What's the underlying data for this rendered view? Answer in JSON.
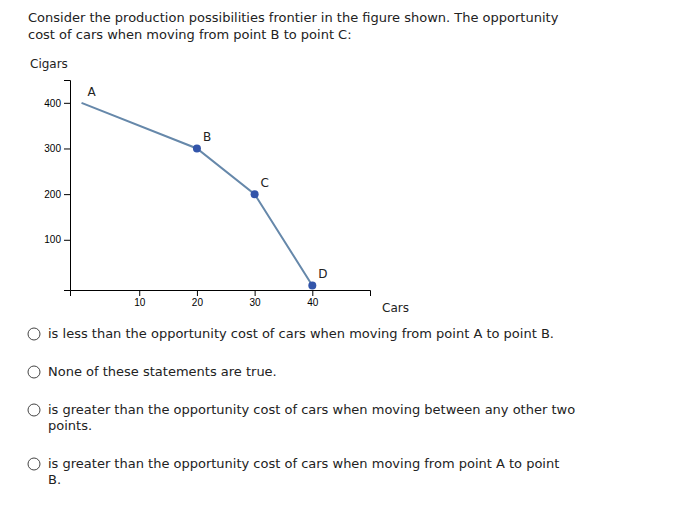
{
  "chart_data": {
    "type": "line",
    "title": [
      "Consider the production possibilities frontier in the figure shown. The opportunity",
      "cost of cars when moving from point B to point C:"
    ],
    "ylabel": "Cigars",
    "xlabel": "Cars",
    "series": [
      {
        "type": "line",
        "x": [
          0,
          20,
          30,
          40
        ],
        "values": [
          400,
          300,
          200,
          0
        ],
        "color": "#6688aa",
        "point_labels": [
          "A",
          "B",
          "C",
          "D"
        ]
      },
      {
        "type": "scatter",
        "x": [
          20,
          30,
          40
        ],
        "values": [
          300,
          200,
          0
        ],
        "color": "#3355aa",
        "marker": "circle"
      }
    ],
    "xlim": [
      -2,
      50
    ],
    "ylim": [
      -10,
      450
    ],
    "xticks": [
      10,
      20,
      30,
      40
    ],
    "yticks": [
      100,
      200,
      300,
      400
    ],
    "grid": false,
    "annotations": [
      "is less than the opportunity cost of cars when moving from point A to point B.",
      "None of these statements are true.",
      "is greater than the opportunity cost of cars when moving between any other two\npoints.",
      "is greater than the opportunity cost of cars when moving from point A to point\nB."
    ]
  }
}
